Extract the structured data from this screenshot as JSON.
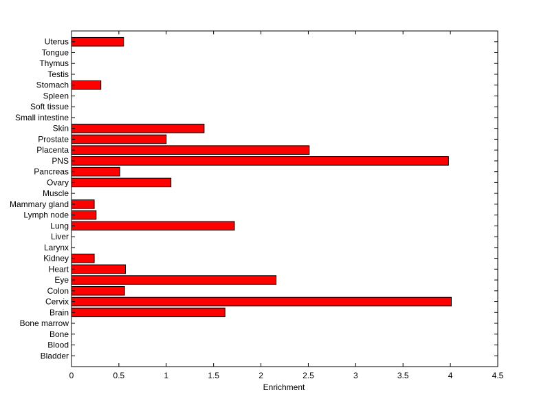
{
  "chart_data": {
    "type": "bar",
    "orientation": "horizontal",
    "categories": [
      "Bladder",
      "Blood",
      "Bone",
      "Bone marrow",
      "Brain",
      "Cervix",
      "Colon",
      "Eye",
      "Heart",
      "Kidney",
      "Larynx",
      "Liver",
      "Lung",
      "Lymph node",
      "Mammary gland",
      "Muscle",
      "Ovary",
      "Pancreas",
      "PNS",
      "Placenta",
      "Prostate",
      "Skin",
      "Small intestine",
      "Soft tissue",
      "Spleen",
      "Stomach",
      "Testis",
      "Thymus",
      "Tongue",
      "Uterus"
    ],
    "values": [
      0,
      0,
      0,
      0,
      1.62,
      4.01,
      0.56,
      2.16,
      0.57,
      0.24,
      0,
      0,
      1.72,
      0.26,
      0.24,
      0,
      1.05,
      0.51,
      3.98,
      2.51,
      1.0,
      1.4,
      0,
      0,
      0,
      0.31,
      0,
      0,
      0,
      0.55
    ],
    "xlabel": "Enrichment",
    "ylabel": "",
    "title": "",
    "xlim": [
      0,
      4.5
    ],
    "xticks": [
      "0",
      "0.5",
      "1",
      "1.5",
      "2",
      "2.5",
      "3",
      "3.5",
      "4",
      "4.5"
    ],
    "grid": false,
    "colors": {
      "bar_fill": "#ff0000",
      "bar_edge": "#000000",
      "axes": "#000000"
    }
  }
}
